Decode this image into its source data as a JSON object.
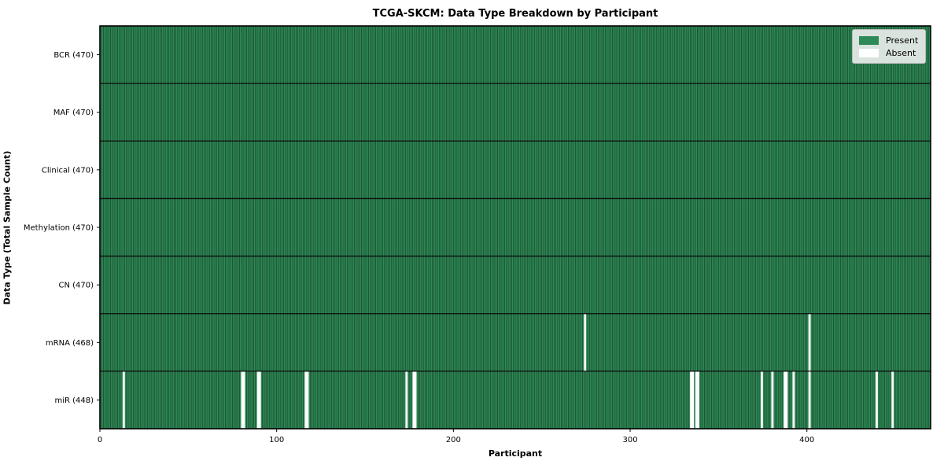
{
  "figure": {
    "title": "TCGA-SKCM: Data Type Breakdown by Participant",
    "xlabel": "Participant",
    "ylabel": "Data Type (Total Sample Count)"
  },
  "chart_data": {
    "type": "heatmap",
    "title": "TCGA-SKCM: Data Type Breakdown by Participant",
    "xlabel": "Participant",
    "ylabel": "Data Type (Total Sample Count)",
    "n_participants": 470,
    "x_range": [
      0,
      470
    ],
    "x_ticks": [
      0,
      100,
      200,
      300,
      400
    ],
    "grid": false,
    "rows": [
      {
        "label": "BCR (470)",
        "data_type": "BCR",
        "present_count": 470,
        "absent_participants": []
      },
      {
        "label": "MAF (470)",
        "data_type": "MAF",
        "present_count": 470,
        "absent_participants": []
      },
      {
        "label": "Clinical (470)",
        "data_type": "Clinical",
        "present_count": 470,
        "absent_participants": []
      },
      {
        "label": "Methylation (470)",
        "data_type": "Methylation",
        "present_count": 470,
        "absent_participants": []
      },
      {
        "label": "CN (470)",
        "data_type": "CN",
        "present_count": 470,
        "absent_participants": []
      },
      {
        "label": "mRNA (468)",
        "data_type": "mRNA",
        "present_count": 468,
        "absent_participants": [
          274,
          401
        ]
      },
      {
        "label": "miR (448)",
        "data_type": "miR",
        "present_count": 448,
        "absent_participants": [
          13,
          80,
          81,
          89,
          90,
          116,
          117,
          173,
          177,
          178,
          334,
          335,
          337,
          338,
          374,
          380,
          387,
          388,
          392,
          401,
          439,
          448
        ]
      }
    ],
    "colors": {
      "present": "#2e8b57",
      "absent": "#ffffff",
      "cell_edge": "#1b4a2e",
      "row_divider": "#0d0d0d",
      "spine": "#000000"
    },
    "legend": {
      "position": "upper right",
      "entries": [
        {
          "label": "Present",
          "color": "#2e8b57"
        },
        {
          "label": "Absent",
          "color": "#ffffff"
        }
      ]
    }
  }
}
